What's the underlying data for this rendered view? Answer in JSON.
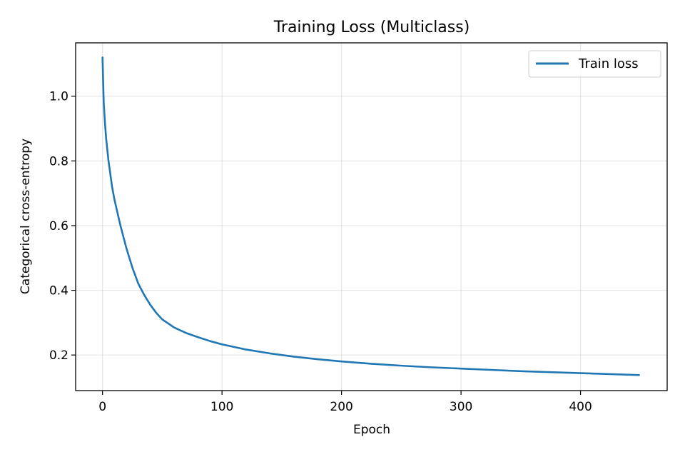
{
  "chart_data": {
    "type": "line",
    "title": "Training Loss (Multiclass)",
    "xlabel": "Epoch",
    "ylabel": "Categorical cross-entropy",
    "xlim": [
      -22.5,
      472.5
    ],
    "ylim": [
      0.09,
      1.165
    ],
    "xticks": [
      0,
      100,
      200,
      300,
      400
    ],
    "xtick_labels": [
      "0",
      "100",
      "200",
      "300",
      "400"
    ],
    "yticks": [
      0.2,
      0.4,
      0.6,
      0.8,
      1.0
    ],
    "ytick_labels": [
      "0.2",
      "0.4",
      "0.6",
      "0.8",
      "1.0"
    ],
    "grid": true,
    "legend_position": "top-right",
    "series": [
      {
        "name": "Train loss",
        "color": "#1f77b4",
        "x": [
          0,
          1,
          2,
          3,
          5,
          8,
          10,
          15,
          20,
          25,
          30,
          35,
          40,
          45,
          50,
          60,
          70,
          80,
          90,
          100,
          120,
          140,
          160,
          180,
          200,
          225,
          250,
          275,
          300,
          325,
          350,
          375,
          400,
          425,
          449
        ],
        "y": [
          1.12,
          0.98,
          0.92,
          0.87,
          0.8,
          0.72,
          0.68,
          0.6,
          0.53,
          0.47,
          0.42,
          0.385,
          0.355,
          0.33,
          0.31,
          0.285,
          0.268,
          0.255,
          0.243,
          0.233,
          0.217,
          0.205,
          0.195,
          0.187,
          0.18,
          0.173,
          0.167,
          0.162,
          0.158,
          0.154,
          0.15,
          0.147,
          0.144,
          0.141,
          0.138
        ]
      }
    ]
  }
}
